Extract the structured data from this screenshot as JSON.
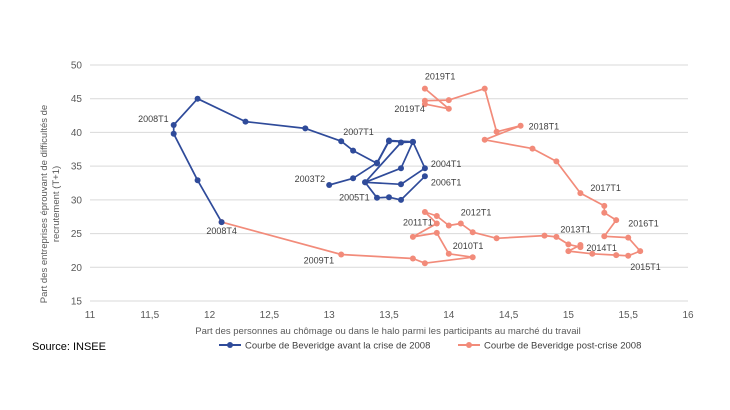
{
  "source_text": "Source: INSEE",
  "chart_data": {
    "type": "line",
    "xlabel": "Part des personnes au chômage ou dans le halo parmi les participants au marché du travail",
    "ylabel_lines": [
      "Part des entreprises éprouvant  de difficultés de",
      "recrutement (T+1)"
    ],
    "xlim": [
      11,
      16
    ],
    "ylim": [
      15,
      50
    ],
    "x_ticks": [
      "11",
      "11,5",
      "12",
      "12,5",
      "13",
      "13,5",
      "14",
      "14,5",
      "15",
      "15,5",
      "16"
    ],
    "y_ticks": [
      "15",
      "20",
      "25",
      "30",
      "35",
      "40",
      "45",
      "50"
    ],
    "grid": "horizontal",
    "legend_position": "bottom",
    "series": [
      {
        "name": "Courbe de Beveridge avant la crise de 2008",
        "color": "#2f4b9a",
        "points": [
          [
            13.7,
            38.6
          ],
          [
            13.5,
            38.7
          ],
          [
            13.4,
            35.4
          ],
          [
            13.2,
            37.3
          ],
          [
            13.1,
            38.7
          ],
          [
            12.8,
            40.6
          ],
          [
            12.3,
            41.6
          ],
          [
            11.9,
            45.0
          ],
          [
            11.7,
            41.1
          ],
          [
            11.7,
            39.8
          ],
          [
            11.9,
            32.9
          ],
          [
            12.1,
            26.7
          ]
        ]
      },
      {
        "name": "Courbe de Beveridge post-crise 2008",
        "color": "#f28b7a",
        "points": [
          [
            12.1,
            26.7
          ],
          [
            13.1,
            21.9
          ],
          [
            13.7,
            21.3
          ],
          [
            13.8,
            20.6
          ],
          [
            14.2,
            21.5
          ],
          [
            14.0,
            22.0
          ],
          [
            13.9,
            25.1
          ],
          [
            13.7,
            24.5
          ],
          [
            13.9,
            26.5
          ],
          [
            13.8,
            28.2
          ],
          [
            13.9,
            27.6
          ],
          [
            14.0,
            26.2
          ],
          [
            14.1,
            26.5
          ],
          [
            14.2,
            25.2
          ],
          [
            14.4,
            24.3
          ],
          [
            14.8,
            24.7
          ],
          [
            14.9,
            24.5
          ],
          [
            15.0,
            23.4
          ],
          [
            15.1,
            23.0
          ],
          [
            15.1,
            23.3
          ],
          [
            15.0,
            22.4
          ],
          [
            15.2,
            22.0
          ],
          [
            15.4,
            21.8
          ],
          [
            15.5,
            21.7
          ],
          [
            15.6,
            22.4
          ],
          [
            15.5,
            24.4
          ],
          [
            15.3,
            24.6
          ],
          [
            15.4,
            27.0
          ],
          [
            15.3,
            28.1
          ],
          [
            15.3,
            29.1
          ],
          [
            15.1,
            31.0
          ],
          [
            14.9,
            35.7
          ],
          [
            14.7,
            37.6
          ],
          [
            14.3,
            38.9
          ],
          [
            14.6,
            41.0
          ],
          [
            14.4,
            40.1
          ],
          [
            14.3,
            46.5
          ],
          [
            14.0,
            44.8
          ],
          [
            13.8,
            44.7
          ],
          [
            13.8,
            44.2
          ],
          [
            14.0,
            43.5
          ],
          [
            13.8,
            46.5
          ]
        ]
      }
    ],
    "inner_loop": {
      "color": "#2f4b9a",
      "points": [
        [
          13.0,
          32.2
        ],
        [
          13.2,
          33.2
        ],
        [
          13.4,
          35.5
        ],
        [
          13.5,
          38.8
        ],
        [
          13.7,
          38.6
        ],
        [
          13.8,
          34.7
        ],
        [
          13.6,
          32.3
        ],
        [
          13.3,
          32.6
        ],
        [
          13.6,
          34.7
        ],
        [
          13.7,
          38.6
        ],
        [
          13.6,
          38.5
        ],
        [
          13.3,
          32.6
        ],
        [
          13.4,
          30.3
        ],
        [
          13.5,
          30.4
        ],
        [
          13.6,
          30.0
        ],
        [
          13.8,
          33.5
        ]
      ]
    },
    "annotations": [
      {
        "text": "2008T1",
        "x": 11.7,
        "y": 41.1,
        "anchor": "end",
        "dx": -5,
        "dy": -3
      },
      {
        "text": "2008T4",
        "x": 12.1,
        "y": 26.7,
        "anchor": "middle",
        "dx": 0,
        "dy": 12
      },
      {
        "text": "2007T1",
        "x": 13.1,
        "y": 38.7,
        "anchor": "start",
        "dx": 2,
        "dy": -6
      },
      {
        "text": "2003T2",
        "x": 13.0,
        "y": 32.2,
        "anchor": "end",
        "dx": -4,
        "dy": -3
      },
      {
        "text": "2005T1",
        "x": 13.2,
        "y": 33.2,
        "anchor": "start",
        "dx": -14,
        "dy": 22
      },
      {
        "text": "2004T1",
        "x": 13.8,
        "y": 34.7,
        "anchor": "start",
        "dx": 6,
        "dy": -1
      },
      {
        "text": "2006T1",
        "x": 13.8,
        "y": 33.5,
        "anchor": "start",
        "dx": 6,
        "dy": 9
      },
      {
        "text": "2009T1",
        "x": 13.1,
        "y": 21.9,
        "anchor": "end",
        "dx": -7,
        "dy": 9
      },
      {
        "text": "2010T1",
        "x": 14.0,
        "y": 22.0,
        "anchor": "start",
        "dx": 4,
        "dy": -5
      },
      {
        "text": "2011T1",
        "x": 13.9,
        "y": 26.5,
        "anchor": "end",
        "dx": -4,
        "dy": 2
      },
      {
        "text": "2012T1",
        "x": 14.1,
        "y": 26.5,
        "anchor": "start",
        "dx": 0,
        "dy": -8
      },
      {
        "text": "2013T1",
        "x": 15.0,
        "y": 23.4,
        "anchor": "start",
        "dx": -8,
        "dy": -12
      },
      {
        "text": "2014T1",
        "x": 15.1,
        "y": 23.0,
        "anchor": "start",
        "dx": 6,
        "dy": 4
      },
      {
        "text": "2015T1",
        "x": 15.5,
        "y": 21.7,
        "anchor": "start",
        "dx": 2,
        "dy": 14
      },
      {
        "text": "2016T1",
        "x": 15.5,
        "y": 24.4,
        "anchor": "start",
        "dx": 0,
        "dy": -11
      },
      {
        "text": "2017T1",
        "x": 15.1,
        "y": 31.0,
        "anchor": "start",
        "dx": 10,
        "dy": -2
      },
      {
        "text": "2018T1",
        "x": 14.6,
        "y": 41.0,
        "anchor": "start",
        "dx": 8,
        "dy": 4
      },
      {
        "text": "2019T1",
        "x": 13.8,
        "y": 46.5,
        "anchor": "start",
        "dx": 0,
        "dy": -9
      },
      {
        "text": "2019T4",
        "x": 13.8,
        "y": 44.2,
        "anchor": "end",
        "dx": 0,
        "dy": 8
      }
    ]
  }
}
